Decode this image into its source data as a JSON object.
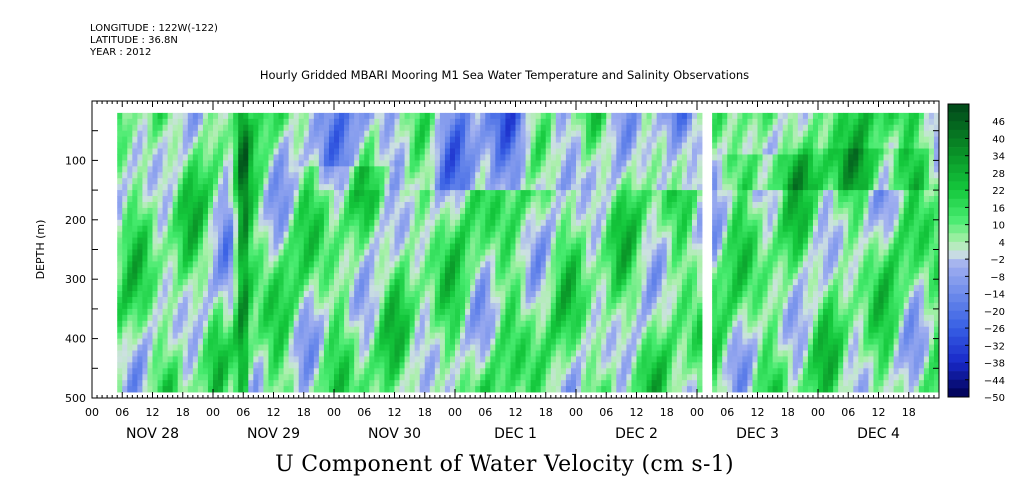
{
  "header": {
    "longitude": "LONGITUDE : 122W(-122)",
    "latitude": "LATITUDE : 36.8N",
    "year": "YEAR : 2012",
    "title": "Hourly Gridded MBARI Mooring M1 Sea Water Temperature and Salinity Observations"
  },
  "chart_data": {
    "type": "heatmap",
    "title": "Hourly Gridded MBARI Mooring M1 Sea Water Temperature and Salinity Observations",
    "xlabel": "U Component of Water Velocity (cm s-1)",
    "ylabel": "DEPTH (m)",
    "x_unit": "hours",
    "x_range": [
      0,
      168
    ],
    "x_tick_step_hours": 6,
    "x_hour_labels": [
      "00",
      "06",
      "12",
      "18"
    ],
    "days": [
      "NOV 28",
      "NOV 29",
      "NOV 30",
      "DEC  1",
      "DEC  2",
      "DEC  3",
      "DEC  4"
    ],
    "y_range": [
      500,
      0
    ],
    "y_reversed": true,
    "y_ticks": [
      100,
      200,
      300,
      400,
      500
    ],
    "colorbar_labels": [
      46,
      40,
      34,
      28,
      22,
      16,
      10,
      4,
      -2,
      -8,
      -14,
      -20,
      -26,
      -32,
      -38,
      -44,
      -50
    ],
    "colorbar_range": [
      -50,
      52
    ],
    "colorbar_step": 3,
    "data_coverage": {
      "time_start_hours": 5,
      "time_end_hours": 168,
      "depth_top": 20,
      "depth_bottom": 485,
      "gap_hours": [
        [
          121,
          123
        ]
      ]
    },
    "grid": false
  }
}
